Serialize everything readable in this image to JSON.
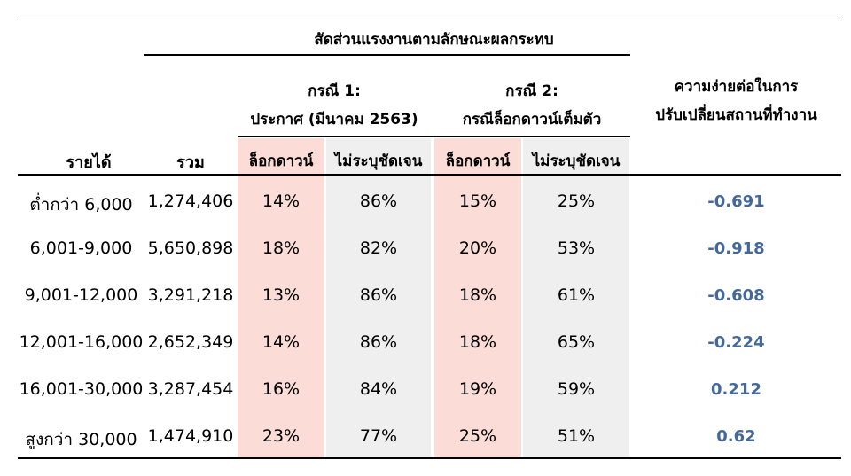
{
  "header": {
    "group_title": "สัดส่วนแรงงานตามลักษณะผลกระทบ",
    "case1_title": "กรณี 1:",
    "case1_sub": "ประกาศ (มีนาคม 2563)",
    "case2_title": "กรณี 2:",
    "case2_sub": "กรณีล็อกดาวน์เต็มตัว",
    "ease_line1": "ความง่ายต่อในการ",
    "ease_line2": "ปรับเปลี่ยนสถานที่ทำงาน",
    "col_income": "รายได้",
    "col_total": "รวม",
    "col_lockdown": "ล็อกดาวน์",
    "col_unspecified": "ไม่ระบุชัดเจน"
  },
  "rows": [
    {
      "income": "ต่ำกว่า 6,000",
      "total": "1,274,406",
      "c1_lock": "14%",
      "c1_un": "86%",
      "c2_lock": "15%",
      "c2_un": "25%",
      "ease": "-0.691"
    },
    {
      "income": "6,001-9,000",
      "total": "5,650,898",
      "c1_lock": "18%",
      "c1_un": "82%",
      "c2_lock": "20%",
      "c2_un": "53%",
      "ease": "-0.918"
    },
    {
      "income": "9,001-12,000",
      "total": "3,291,218",
      "c1_lock": "13%",
      "c1_un": "86%",
      "c2_lock": "18%",
      "c2_un": "61%",
      "ease": "-0.608"
    },
    {
      "income": "12,001-16,000",
      "total": "2,652,349",
      "c1_lock": "14%",
      "c1_un": "86%",
      "c2_lock": "18%",
      "c2_un": "65%",
      "ease": "-0.224"
    },
    {
      "income": "16,001-30,000",
      "total": "3,287,454",
      "c1_lock": "16%",
      "c1_un": "84%",
      "c2_lock": "19%",
      "c2_un": "59%",
      "ease": "0.212"
    },
    {
      "income": "สูงกว่า 30,000",
      "total": "1,474,910",
      "c1_lock": "23%",
      "c1_un": "77%",
      "c2_lock": "25%",
      "c2_un": "51%",
      "ease": "0.62"
    }
  ],
  "colors": {
    "lockdown_shade": "#fbdcd7",
    "unspecified_shade": "#efefef",
    "ease_text": "#44689a"
  }
}
